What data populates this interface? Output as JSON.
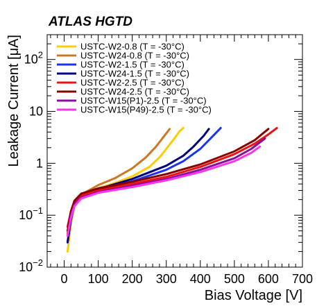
{
  "chart_data": {
    "type": "line",
    "title": "ATLAS HGTD",
    "xlabel": "Bias Voltage [V]",
    "ylabel": "Leakage Current [μA]",
    "xlim": [
      -50,
      700
    ],
    "ylim": [
      0.01,
      300
    ],
    "yscale": "log",
    "grid": false,
    "legend_position": "top-left",
    "x_ticks": [
      0,
      100,
      200,
      300,
      400,
      500,
      600,
      700
    ],
    "x_tick_labels": [
      "0",
      "100",
      "200",
      "300",
      "400",
      "500",
      "600",
      "700"
    ],
    "y_ticks": [
      0.01,
      0.1,
      1,
      10,
      100
    ],
    "y_tick_labels": [
      {
        "base": "10",
        "exp": "−2"
      },
      {
        "base": "10",
        "exp": "−1"
      },
      {
        "base": "1",
        "exp": ""
      },
      {
        "base": "10",
        "exp": ""
      },
      {
        "base": "10",
        "exp": "2"
      }
    ],
    "series": [
      {
        "name": "USTC-W2-0.8 (T = -30°C)",
        "color": "#ffcc00",
        "x": [
          10,
          20,
          30,
          50,
          100,
          150,
          200,
          250,
          280,
          300,
          320,
          340,
          350
        ],
        "y": [
          0.02,
          0.07,
          0.15,
          0.24,
          0.33,
          0.42,
          0.56,
          0.85,
          1.3,
          1.9,
          2.8,
          4.2,
          4.8
        ]
      },
      {
        "name": "USTC-W24-0.8 (T = -30°C)",
        "color": "#cc7722",
        "x": [
          10,
          20,
          30,
          50,
          100,
          150,
          200,
          240,
          270,
          290,
          310
        ],
        "y": [
          0.045,
          0.1,
          0.18,
          0.25,
          0.38,
          0.52,
          0.8,
          1.3,
          2.1,
          3.1,
          4.6
        ]
      },
      {
        "name": "USTC-W2-1.5 (T = -30°C)",
        "color": "#1a33ee",
        "x": [
          10,
          20,
          30,
          50,
          100,
          200,
          300,
          350,
          400,
          430,
          460
        ],
        "y": [
          0.03,
          0.08,
          0.16,
          0.24,
          0.3,
          0.45,
          0.75,
          1.1,
          1.9,
          3.0,
          4.8
        ]
      },
      {
        "name": "USTC-W24-1.5 (T = -30°C)",
        "color": "#000080",
        "x": [
          10,
          20,
          30,
          50,
          100,
          200,
          300,
          350,
          380,
          410,
          425
        ],
        "y": [
          0.03,
          0.09,
          0.17,
          0.25,
          0.32,
          0.5,
          0.9,
          1.4,
          2.1,
          3.4,
          4.6
        ]
      },
      {
        "name": "USTC-W2-2.5 (T = -30°C)",
        "color": "#ee1111",
        "x": [
          10,
          20,
          30,
          50,
          100,
          200,
          300,
          400,
          500,
          560,
          600,
          625
        ],
        "y": [
          0.06,
          0.12,
          0.18,
          0.24,
          0.3,
          0.4,
          0.55,
          0.85,
          1.5,
          2.4,
          3.6,
          4.8
        ]
      },
      {
        "name": "USTC-W24-2.5 (T = -30°C)",
        "color": "#880000",
        "x": [
          10,
          20,
          30,
          50,
          100,
          200,
          300,
          400,
          500,
          560,
          600
        ],
        "y": [
          0.05,
          0.12,
          0.19,
          0.26,
          0.33,
          0.44,
          0.62,
          0.95,
          1.7,
          2.8,
          4.6
        ]
      },
      {
        "name": "USTC-W15(P1)-2.5 (T = -30°C)",
        "color": "#881199",
        "x": [
          10,
          20,
          30,
          50,
          100,
          200,
          300,
          400,
          500,
          550,
          590
        ],
        "y": [
          0.04,
          0.1,
          0.16,
          0.22,
          0.28,
          0.37,
          0.5,
          0.75,
          1.25,
          1.9,
          3.0
        ]
      },
      {
        "name": "USTC-W15(P49)-2.5 (T = -30°C)",
        "color": "#ff33ee",
        "x": [
          10,
          20,
          30,
          50,
          100,
          200,
          300,
          400,
          500,
          550,
          575
        ],
        "y": [
          0.04,
          0.09,
          0.15,
          0.21,
          0.27,
          0.35,
          0.47,
          0.68,
          1.1,
          1.6,
          2.1
        ]
      }
    ]
  }
}
